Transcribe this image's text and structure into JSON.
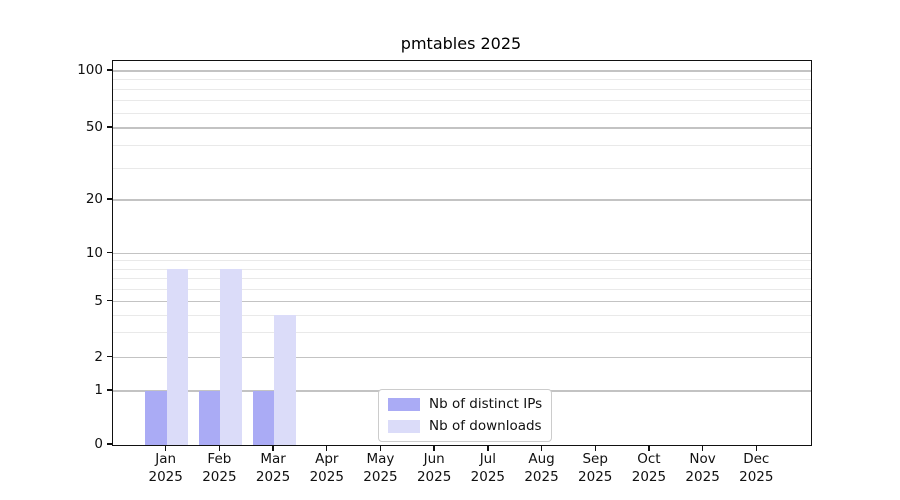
{
  "chart_data": {
    "type": "bar",
    "title": "pmtables 2025",
    "year": "2025",
    "categories": [
      "Jan",
      "Feb",
      "Mar",
      "Apr",
      "May",
      "Jun",
      "Jul",
      "Aug",
      "Sep",
      "Oct",
      "Nov",
      "Dec"
    ],
    "series": [
      {
        "name": "Nb of distinct IPs",
        "color": "#aaabf5",
        "values": [
          1,
          1,
          1,
          0,
          0,
          0,
          0,
          0,
          0,
          0,
          0,
          0
        ]
      },
      {
        "name": "Nb of downloads",
        "color": "#dbdcf9",
        "values": [
          8,
          8,
          4,
          0,
          0,
          0,
          0,
          0,
          0,
          0,
          0,
          0
        ]
      }
    ],
    "y_axis": {
      "scale": "log-like",
      "major_ticks": [
        0,
        1,
        2,
        5,
        10,
        20,
        50,
        100
      ],
      "minor_ticks": [
        3,
        4,
        6,
        7,
        8,
        9,
        30,
        40,
        60,
        70,
        80,
        90
      ],
      "ylim": [
        0,
        110
      ]
    },
    "xlabel": "",
    "ylabel": "",
    "grid": true,
    "legend": {
      "position": "lower center"
    },
    "colors": {
      "axis": "#111111",
      "grid_major": "#c3c3c3",
      "grid_minor": "#e9e9e9",
      "text": "#111111"
    }
  }
}
